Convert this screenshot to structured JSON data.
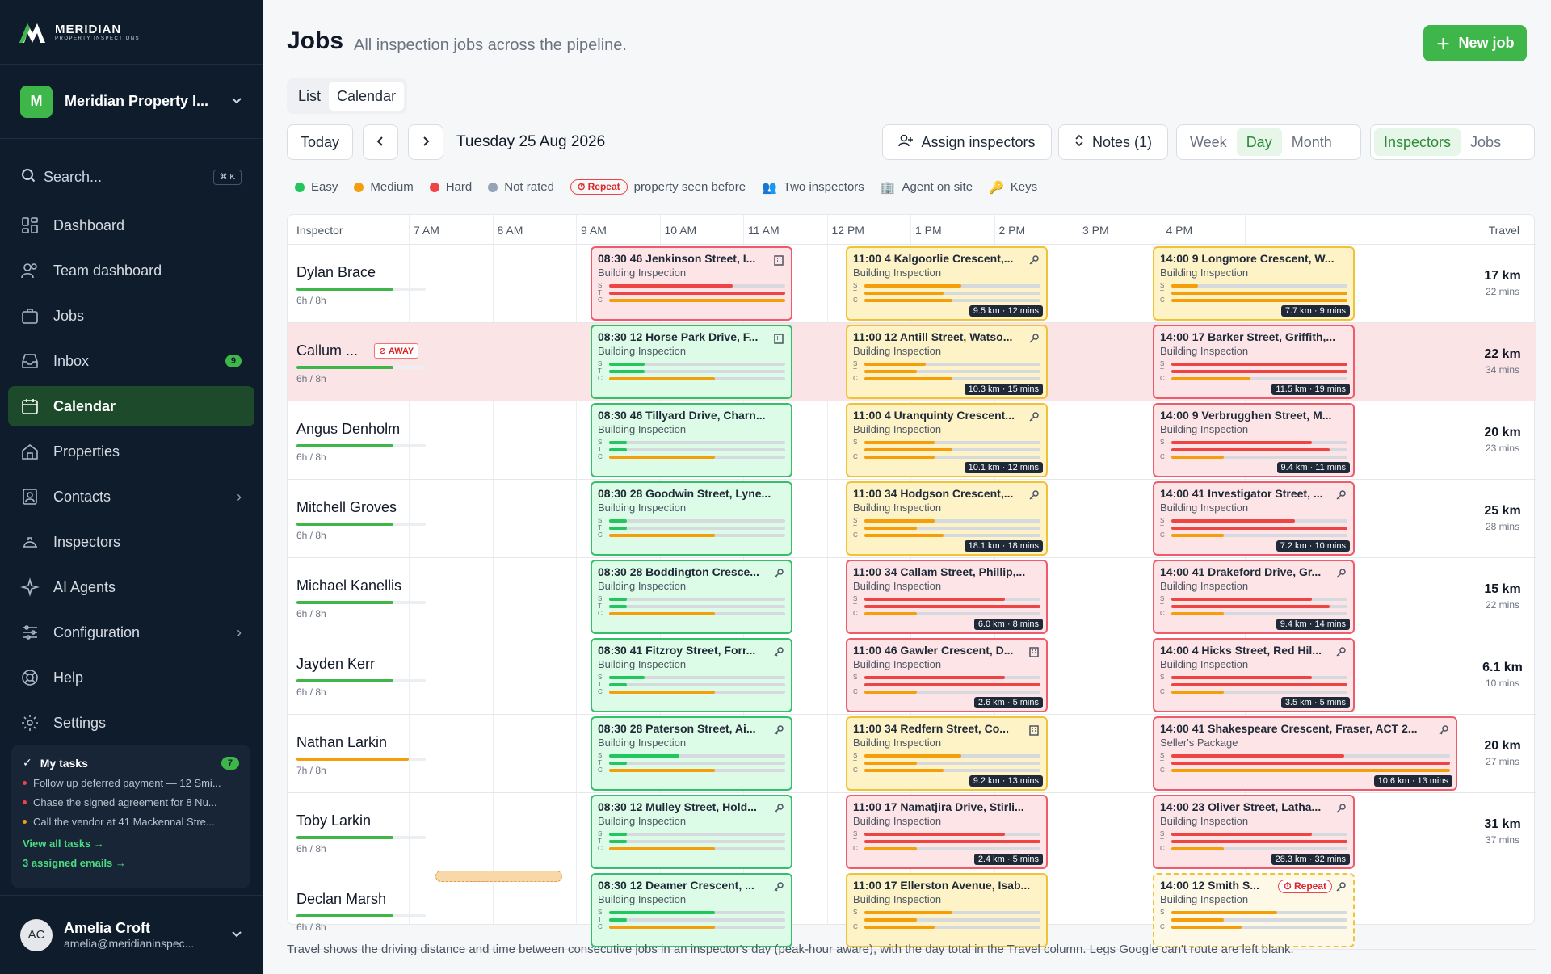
{
  "sidebar": {
    "brand": {
      "name": "MERIDIAN",
      "tagline": "PROPERTY INSPECTIONS"
    },
    "org": {
      "initial": "M",
      "name": "Meridian Property I..."
    },
    "search": {
      "label": "Search...",
      "shortcut": "⌘ K"
    },
    "nav": [
      {
        "label": "Dashboard",
        "icon": "dashboard-icon"
      },
      {
        "label": "Team dashboard",
        "icon": "team-icon"
      },
      {
        "label": "Jobs",
        "icon": "briefcase-icon"
      },
      {
        "label": "Inbox",
        "icon": "inbox-icon",
        "badge": "9"
      },
      {
        "label": "Calendar",
        "icon": "calendar-icon",
        "active": true
      },
      {
        "label": "Properties",
        "icon": "home-icon"
      },
      {
        "label": "Contacts",
        "icon": "contacts-icon",
        "chevron": true
      },
      {
        "label": "Inspectors",
        "icon": "hardhat-icon"
      },
      {
        "label": "AI Agents",
        "icon": "sparkle-icon"
      },
      {
        "label": "Configuration",
        "icon": "sliders-icon",
        "chevron": true
      },
      {
        "label": "Help",
        "icon": "lifebuoy-icon"
      },
      {
        "label": "Settings",
        "icon": "gear-icon"
      }
    ],
    "tasks": {
      "title": "My tasks",
      "count": "7",
      "items": [
        {
          "text": "Follow up deferred payment — 12 Smi...",
          "color": "#ef4444"
        },
        {
          "text": "Chase the signed agreement for 8 Nu...",
          "color": "#ef4444"
        },
        {
          "text": "Call the vendor at 41 Mackennal Stre...",
          "color": "#f59e0b"
        }
      ],
      "view_all": "View all tasks →",
      "emails": "3 assigned emails →"
    },
    "user": {
      "initials": "AC",
      "name": "Amelia Croft",
      "email": "amelia@meridianinspec..."
    }
  },
  "header": {
    "title": "Jobs",
    "subtitle": "All inspection jobs across the pipeline.",
    "new_job": "New job"
  },
  "view_tabs": [
    "List",
    "Calendar"
  ],
  "toolbar": {
    "today": "Today",
    "date": "Tuesday 25 Aug 2026",
    "assign": "Assign inspectors",
    "notes": "Notes (1)",
    "ranges": [
      "Week",
      "Day",
      "Month"
    ],
    "modes": [
      "Inspectors",
      "Jobs"
    ]
  },
  "legend": {
    "easy": "Easy",
    "medium": "Medium",
    "hard": "Hard",
    "not_rated": "Not rated",
    "repeat": "Repeat",
    "repeat_text": "property seen before",
    "two": "Two inspectors",
    "agent": "Agent on site",
    "keys": "Keys"
  },
  "colors": {
    "easy": "#22c55e",
    "medium": "#f59e0b",
    "hard": "#ef4444",
    "not_rated": "#94a3b8",
    "accent": "#3fb64a"
  },
  "grid": {
    "inspector_header": "Inspector",
    "travel_header": "Travel",
    "hours": [
      "7 AM",
      "8 AM",
      "9 AM",
      "10 AM",
      "11 AM",
      "12 PM",
      "1 PM",
      "2 PM",
      "3 PM",
      "4 PM"
    ],
    "rows": [
      {
        "name": "Dylan Brace",
        "hours": "6h / 8h",
        "load": 0.75,
        "load_color": "#3fb64a",
        "travel_km": "17 km",
        "travel_min": "22 mins",
        "jobs": [
          {
            "title": "08:30 46 Jenkinson Street, I...",
            "type": "Building Inspection",
            "diff": "hard",
            "icon": "building-icon",
            "bars": [
              0.7,
              1,
              1
            ],
            "travel": ""
          },
          {
            "title": "11:00 4 Kalgoorlie Crescent,...",
            "type": "Building Inspection",
            "diff": "med",
            "icon": "key-icon",
            "bars": [
              0.55,
              0.45,
              0.5
            ],
            "travel": "9.5 km · 12 mins"
          },
          {
            "title": "14:00 9 Longmore Crescent, W...",
            "type": "Building Inspection",
            "diff": "med",
            "icon": "",
            "bars": [
              0.15,
              1,
              1
            ],
            "travel": "7.7 km · 9 mins"
          }
        ]
      },
      {
        "name": "Callum ...",
        "away": true,
        "away_label": "AWAY",
        "hours": "6h / 8h",
        "load": 0.75,
        "load_color": "#3fb64a",
        "travel_km": "22 km",
        "travel_min": "34 mins",
        "jobs": [
          {
            "title": "08:30 12 Horse Park Drive, F...",
            "type": "Building Inspection",
            "diff": "easy",
            "icon": "building-icon",
            "bars": [
              0.2,
              0.2,
              0.6
            ],
            "travel": ""
          },
          {
            "title": "11:00 12 Antill Street, Watso...",
            "type": "Building Inspection",
            "diff": "med",
            "icon": "key-icon",
            "bars": [
              0.35,
              0.3,
              0.5
            ],
            "travel": "10.3 km · 15 mins"
          },
          {
            "title": "14:00 17 Barker Street, Griffith,...",
            "type": "Building Inspection",
            "diff": "hard",
            "icon": "",
            "bars": [
              1,
              1,
              0.45
            ],
            "travel": "11.5 km · 19 mins"
          }
        ]
      },
      {
        "name": "Angus Denholm",
        "hours": "6h / 8h",
        "load": 0.75,
        "load_color": "#3fb64a",
        "travel_km": "20 km",
        "travel_min": "23 mins",
        "jobs": [
          {
            "title": "08:30 46 Tillyard Drive, Charn...",
            "type": "Building Inspection",
            "diff": "easy",
            "icon": "",
            "bars": [
              0.1,
              0.1,
              0.6
            ],
            "travel": ""
          },
          {
            "title": "11:00 4 Uranquinty Crescent...",
            "type": "Building Inspection",
            "diff": "med",
            "icon": "key-icon",
            "bars": [
              0.4,
              0.5,
              0.4
            ],
            "travel": "10.1 km · 12 mins"
          },
          {
            "title": "14:00 9 Verbrugghen Street, M...",
            "type": "Building Inspection",
            "diff": "hard",
            "icon": "",
            "bars": [
              0.8,
              0.9,
              0.3
            ],
            "travel": "9.4 km · 11 mins"
          }
        ]
      },
      {
        "name": "Mitchell Groves",
        "hours": "6h / 8h",
        "load": 0.75,
        "load_color": "#3fb64a",
        "travel_km": "25 km",
        "travel_min": "28 mins",
        "jobs": [
          {
            "title": "08:30 28 Goodwin Street, Lyne...",
            "type": "Building Inspection",
            "diff": "easy",
            "icon": "",
            "bars": [
              0.1,
              0.1,
              0.6
            ],
            "travel": ""
          },
          {
            "title": "11:00 34 Hodgson Crescent,...",
            "type": "Building Inspection",
            "diff": "med",
            "icon": "key-icon",
            "bars": [
              0.4,
              0.3,
              0.45
            ],
            "travel": "18.1 km · 18 mins"
          },
          {
            "title": "14:00 41 Investigator Street, ...",
            "type": "Building Inspection",
            "diff": "hard",
            "icon": "key-icon",
            "bars": [
              0.7,
              1,
              0.3
            ],
            "travel": "7.2 km · 10 mins"
          }
        ]
      },
      {
        "name": "Michael Kanellis",
        "hours": "6h / 8h",
        "load": 0.75,
        "load_color": "#3fb64a",
        "travel_km": "15 km",
        "travel_min": "22 mins",
        "jobs": [
          {
            "title": "08:30 28 Boddington Cresce...",
            "type": "Building Inspection",
            "diff": "easy",
            "icon": "key-icon",
            "bars": [
              0.1,
              0.1,
              0.6
            ],
            "travel": ""
          },
          {
            "title": "11:00 34 Callam Street, Phillip,...",
            "type": "Building Inspection",
            "diff": "hard",
            "icon": "",
            "bars": [
              0.8,
              1,
              0.3
            ],
            "travel": "6.0 km · 8 mins"
          },
          {
            "title": "14:00 41 Drakeford Drive, Gr...",
            "type": "Building Inspection",
            "diff": "hard",
            "icon": "key-icon",
            "bars": [
              0.8,
              0.9,
              0.3
            ],
            "travel": "9.4 km · 14 mins"
          }
        ]
      },
      {
        "name": "Jayden Kerr",
        "hours": "6h / 8h",
        "load": 0.75,
        "load_color": "#3fb64a",
        "travel_km": "6.1 km",
        "travel_min": "10 mins",
        "jobs": [
          {
            "title": "08:30 41 Fitzroy Street, Forr...",
            "type": "Building Inspection",
            "diff": "easy",
            "icon": "key-icon",
            "bars": [
              0.2,
              0.1,
              0.6
            ],
            "travel": ""
          },
          {
            "title": "11:00 46 Gawler Crescent, D...",
            "type": "Building Inspection",
            "diff": "hard",
            "icon": "building-icon",
            "bars": [
              0.8,
              1,
              0.3
            ],
            "travel": "2.6 km · 5 mins"
          },
          {
            "title": "14:00 4 Hicks Street, Red Hil...",
            "type": "Building Inspection",
            "diff": "hard",
            "icon": "key-icon",
            "bars": [
              0.8,
              1,
              0.3
            ],
            "travel": "3.5 km · 5 mins"
          }
        ]
      },
      {
        "name": "Nathan Larkin",
        "hours": "7h / 8h",
        "load": 0.87,
        "load_color": "#f59e0b",
        "travel_km": "20 km",
        "travel_min": "27 mins",
        "jobs": [
          {
            "title": "08:30 28 Paterson Street, Ai...",
            "type": "Building Inspection",
            "diff": "easy",
            "icon": "key-icon",
            "bars": [
              0.4,
              0.1,
              0.6
            ],
            "travel": ""
          },
          {
            "title": "11:00 34 Redfern Street, Co...",
            "type": "Building Inspection",
            "diff": "med",
            "icon": "building-icon",
            "bars": [
              0.55,
              0.3,
              0.45
            ],
            "travel": "9.2 km · 13 mins"
          },
          {
            "title": "14:00 41 Shakespeare Crescent, Fraser, ACT 2...",
            "type": "Seller's Package",
            "diff": "hard",
            "icon": "key-icon",
            "wide": true,
            "bars": [
              0.62,
              1,
              1
            ],
            "travel": "10.6 km · 13 mins"
          }
        ]
      },
      {
        "name": "Toby Larkin",
        "hours": "6h / 8h",
        "load": 0.75,
        "load_color": "#3fb64a",
        "travel_km": "31 km",
        "travel_min": "37 mins",
        "jobs": [
          {
            "title": "08:30 12 Mulley Street, Hold...",
            "type": "Building Inspection",
            "diff": "easy",
            "icon": "key-icon",
            "bars": [
              0.1,
              0.1,
              0.6
            ],
            "travel": ""
          },
          {
            "title": "11:00 17 Namatjira Drive, Stirli...",
            "type": "Building Inspection",
            "diff": "hard",
            "icon": "",
            "bars": [
              0.8,
              1,
              0.3
            ],
            "travel": "2.4 km · 5 mins"
          },
          {
            "title": "14:00 23 Oliver Street, Latha...",
            "type": "Building Inspection",
            "diff": "hard",
            "icon": "key-icon",
            "bars": [
              0.8,
              1,
              0.3
            ],
            "travel": "28.3 km · 32 mins"
          }
        ]
      },
      {
        "name": "Declan Marsh",
        "hours": "6h / 8h",
        "load": 0.75,
        "load_color": "#3fb64a",
        "travel_km": "",
        "travel_min": "",
        "jobs": [
          {
            "title": "08:30 12 Deamer Crescent, ...",
            "type": "Building Inspection",
            "diff": "easy",
            "icon": "key-icon",
            "bars": [
              0.6,
              0.1,
              0.6
            ],
            "travel": ""
          },
          {
            "title": "11:00 17 Ellerston Avenue, Isab...",
            "type": "Building Inspection",
            "diff": "med",
            "icon": "",
            "bars": [
              0.5,
              0.3,
              0.4
            ],
            "travel": ""
          },
          {
            "title": "14:00 12 Smith S...",
            "type": "Building Inspection",
            "diff": "med",
            "dashed": true,
            "repeat": "Repeat",
            "icon": "key-icon",
            "bars": [
              0.6,
              0.3,
              0.4
            ],
            "travel": ""
          }
        ]
      }
    ]
  },
  "footnote": "Travel shows the driving distance and time between consecutive jobs in an inspector's day (peak-hour aware), with the day total in the Travel column. Legs Google can't route are left blank."
}
